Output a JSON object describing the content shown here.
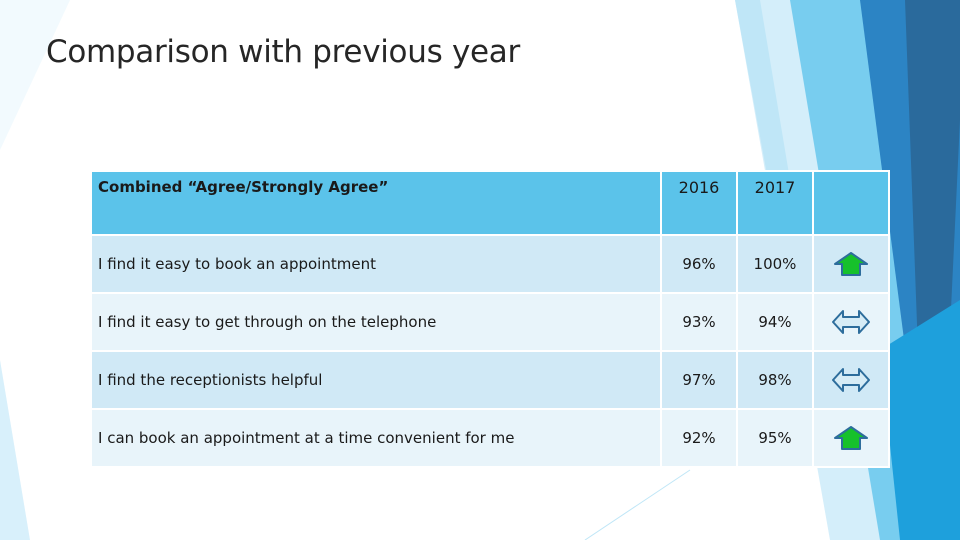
{
  "slide": {
    "title": "Comparison with previous year"
  },
  "table": {
    "header": {
      "label": "Combined “Agree/Strongly Agree”",
      "year1": "2016",
      "year2": "2017",
      "trend": ""
    },
    "rows": [
      {
        "statement": "I find it easy to book an appointment",
        "year1": "96%",
        "year2": "100%",
        "trend": "up-arrow-icon"
      },
      {
        "statement": "I find it easy to get through on the telephone",
        "year1": "93%",
        "year2": "94%",
        "trend": "left-right-arrow-icon"
      },
      {
        "statement": "I find the receptionists helpful",
        "year1": "97%",
        "year2": "98%",
        "trend": "left-right-arrow-icon"
      },
      {
        "statement": "I can book an appointment at a time convenient for me",
        "year1": "92%",
        "year2": "95%",
        "trend": "up-arrow-icon"
      }
    ]
  },
  "colors": {
    "header_bg": "#5bc3ea",
    "row_dark": "#d0e9f6",
    "row_light": "#e8f4fa",
    "up_arrow": "#16c12b",
    "side_arrow": "#d6ecf6",
    "accent_blue": "#2d6d9c"
  }
}
